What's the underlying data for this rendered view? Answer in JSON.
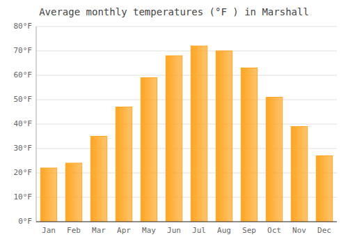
{
  "chart_data": {
    "type": "bar",
    "title": "Average monthly temperatures (°F ) in Marshall",
    "categories": [
      "Jan",
      "Feb",
      "Mar",
      "Apr",
      "May",
      "Jun",
      "Jul",
      "Aug",
      "Sep",
      "Oct",
      "Nov",
      "Dec"
    ],
    "values": [
      22,
      24,
      35,
      47,
      59,
      68,
      72,
      70,
      63,
      51,
      39,
      27
    ],
    "color": "#FFA520",
    "ylim": [
      0,
      80
    ],
    "yticks": [
      {
        "value": 0,
        "label": "0°F"
      },
      {
        "value": 10,
        "label": "10°F"
      },
      {
        "value": 20,
        "label": "20°F"
      },
      {
        "value": 30,
        "label": "30°F"
      },
      {
        "value": 40,
        "label": "40°F"
      },
      {
        "value": 50,
        "label": "50°F"
      },
      {
        "value": 60,
        "label": "60°F"
      },
      {
        "value": 70,
        "label": "70°F"
      },
      {
        "value": 80,
        "label": "80°F"
      }
    ],
    "grid": true
  }
}
